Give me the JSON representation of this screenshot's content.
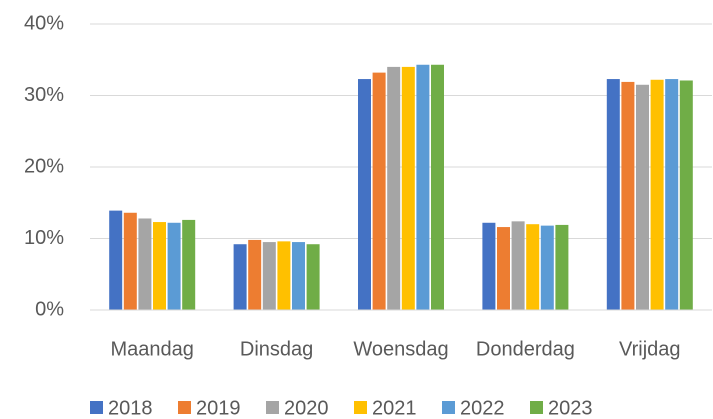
{
  "chart_data": {
    "type": "bar",
    "categories": [
      "Maandag",
      "Dinsdag",
      "Woensdag",
      "Donderdag",
      "Vrijdag"
    ],
    "series": [
      {
        "name": "2018",
        "color": "#4472c4",
        "values": [
          13.9,
          9.2,
          32.3,
          12.2,
          32.3
        ]
      },
      {
        "name": "2019",
        "color": "#ed7d31",
        "values": [
          13.6,
          9.8,
          33.2,
          11.6,
          31.9
        ]
      },
      {
        "name": "2020",
        "color": "#a5a5a5",
        "values": [
          12.8,
          9.5,
          34.0,
          12.4,
          31.5
        ]
      },
      {
        "name": "2021",
        "color": "#ffc000",
        "values": [
          12.3,
          9.6,
          34.0,
          12.0,
          32.2
        ]
      },
      {
        "name": "2022",
        "color": "#5b9bd5",
        "values": [
          12.2,
          9.5,
          34.3,
          11.8,
          32.3
        ]
      },
      {
        "name": "2023",
        "color": "#70ad47",
        "values": [
          12.6,
          9.2,
          34.3,
          11.9,
          32.1
        ]
      }
    ],
    "ylim": [
      0,
      40
    ],
    "yticks": [
      {
        "value": 0,
        "label": "0%"
      },
      {
        "value": 10,
        "label": "10%"
      },
      {
        "value": 20,
        "label": "20%"
      },
      {
        "value": 30,
        "label": "30%"
      },
      {
        "value": 40,
        "label": "40%"
      }
    ],
    "grid": true,
    "legend": "bottom"
  }
}
